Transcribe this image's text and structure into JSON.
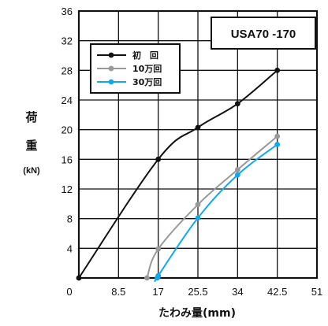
{
  "chart_data": {
    "type": "line",
    "model_label": "USA70 -170",
    "ylabel_chars": [
      "荷",
      "重"
    ],
    "ylabel_unit": "(kN)",
    "xlabel": "たわみ量(mm)",
    "xlim": [
      0,
      51
    ],
    "ylim": [
      0,
      36
    ],
    "x_ticks": [
      "0",
      "8.5",
      "17",
      "25.5",
      "34",
      "42.5",
      "51"
    ],
    "x_tick_values": [
      0,
      8.5,
      17,
      25.5,
      34,
      42.5,
      51
    ],
    "y_ticks": [
      "4",
      "8",
      "12",
      "16",
      "20",
      "24",
      "28",
      "32",
      "36"
    ],
    "y_tick_values": [
      4,
      8,
      12,
      16,
      20,
      24,
      28,
      32,
      36
    ],
    "grid": true,
    "legend_position": "top-left",
    "series": [
      {
        "name": "初　回",
        "color": "#111111",
        "x": [
          0,
          17,
          25.5,
          34,
          42.5
        ],
        "y": [
          0,
          16,
          20.3,
          23.5,
          28
        ]
      },
      {
        "name": "10万回",
        "color": "#999999",
        "x": [
          14.6,
          17,
          25.5,
          34,
          42.5
        ],
        "y": [
          0,
          3.9,
          9.9,
          14.6,
          19.1
        ]
      },
      {
        "name": "30万回",
        "color": "#12a9e8",
        "x": [
          16.8,
          17,
          25.5,
          34,
          42.5
        ],
        "y": [
          0,
          0.3,
          8.1,
          13.9,
          18
        ]
      }
    ]
  }
}
